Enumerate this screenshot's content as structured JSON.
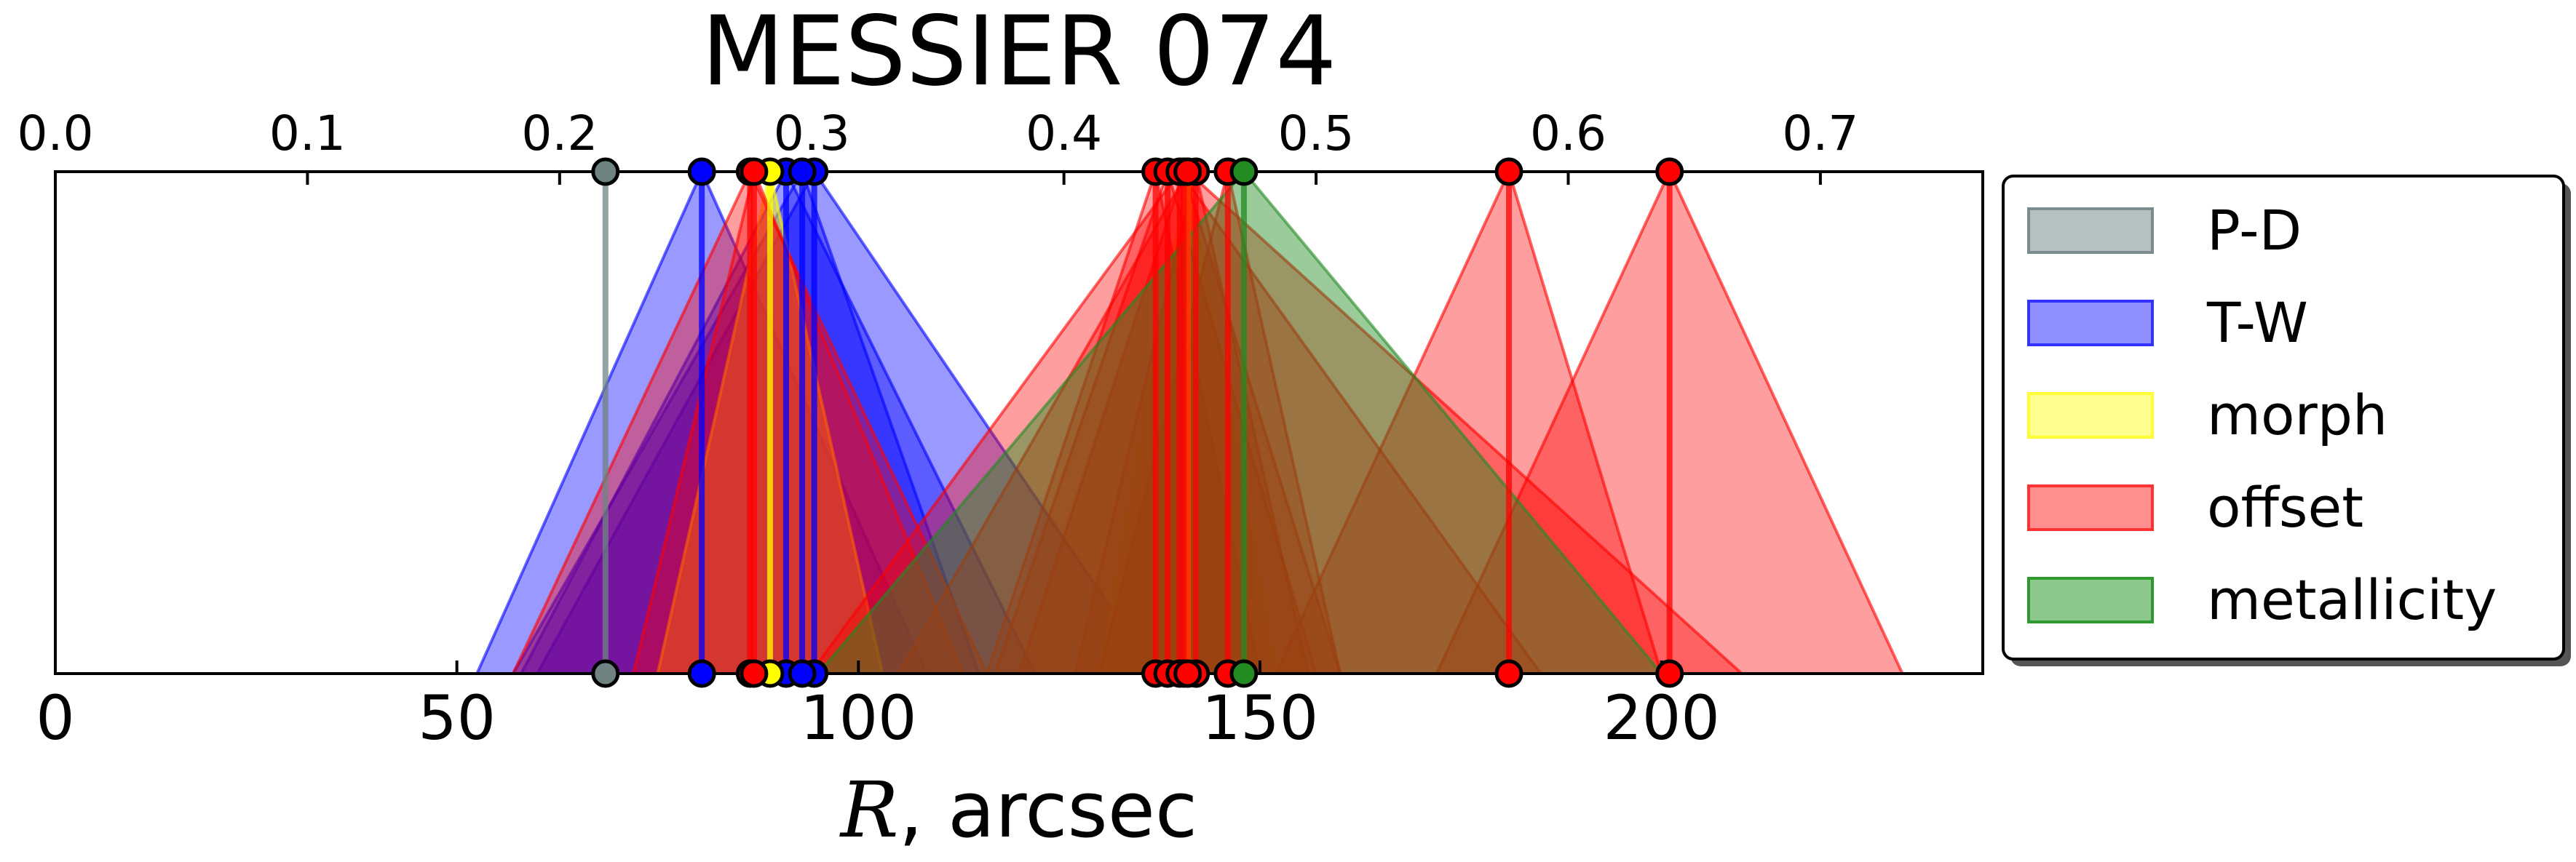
{
  "chart_data": {
    "type": "area",
    "title": "MESSIER 074",
    "xlabel_symbol": "R",
    "xlabel_unit": ", arcsec",
    "xlim": [
      0,
      240
    ],
    "ylim": [
      0,
      1
    ],
    "xticks": [
      0,
      50,
      100,
      150,
      200
    ],
    "top_axis": {
      "ratio_per_arcsec": 0.003185,
      "ticks": [
        "0.0",
        "0.1",
        "0.2",
        "0.3",
        "0.4",
        "0.5",
        "0.6",
        "0.7"
      ]
    },
    "legend_position": "right",
    "legend": [
      {
        "label": "P-D",
        "color": "#7a8c8c"
      },
      {
        "label": "T-W",
        "color": "#3333ff"
      },
      {
        "label": "morph",
        "color": "#ffff33"
      },
      {
        "label": "offset",
        "color": "#ff3333"
      },
      {
        "label": "metallicity",
        "color": "#2e9a2e"
      }
    ],
    "series": [
      {
        "name": "P-D",
        "color": "#6f8383",
        "fill_opacity": 0.0,
        "estimates": [
          {
            "center": 68.5,
            "lower": 68.5,
            "upper": 68.5
          }
        ]
      },
      {
        "name": "T-W",
        "color": "#0000ff",
        "fill_opacity": 0.4,
        "estimates": [
          {
            "center": 80.5,
            "lower": 52.5,
            "upper": 108.5
          },
          {
            "center": 91.0,
            "lower": 58.0,
            "upper": 122.0
          },
          {
            "center": 94.5,
            "lower": 60.0,
            "upper": 137.0
          },
          {
            "center": 93.0,
            "lower": 57.0,
            "upper": 115.0
          }
        ]
      },
      {
        "name": "morph",
        "color": "#ffff00",
        "fill_opacity": 0.5,
        "estimates": [
          {
            "center": 89.0,
            "lower": 75.0,
            "upper": 103.0
          },
          {
            "center": 141.0,
            "lower": 130.0,
            "upper": 152.0
          }
        ]
      },
      {
        "name": "offset",
        "color": "#ff0000",
        "fill_opacity": 0.38,
        "estimates": [
          {
            "center": 86.5,
            "lower": 57.0,
            "upper": 116.0
          },
          {
            "center": 87.0,
            "lower": 72.0,
            "upper": 113.0
          },
          {
            "center": 137.0,
            "lower": 116.0,
            "upper": 150.0
          },
          {
            "center": 138.5,
            "lower": 117.0,
            "upper": 157.0
          },
          {
            "center": 140.5,
            "lower": 120.0,
            "upper": 160.0
          },
          {
            "center": 142.0,
            "lower": 127.0,
            "upper": 156.0
          },
          {
            "center": 146.0,
            "lower": 130.0,
            "upper": 160.0
          },
          {
            "center": 181.0,
            "lower": 152.0,
            "upper": 200.0
          },
          {
            "center": 201.0,
            "lower": 172.0,
            "upper": 230.0
          },
          {
            "center": 140.0,
            "lower": 94.0,
            "upper": 185.0
          },
          {
            "center": 141.0,
            "lower": 105.0,
            "upper": 210.0
          }
        ]
      },
      {
        "name": "metallicity",
        "color": "#228b22",
        "fill_opacity": 0.45,
        "estimates": [
          {
            "center": 148.0,
            "lower": 95.0,
            "upper": 200.0
          }
        ]
      }
    ]
  }
}
